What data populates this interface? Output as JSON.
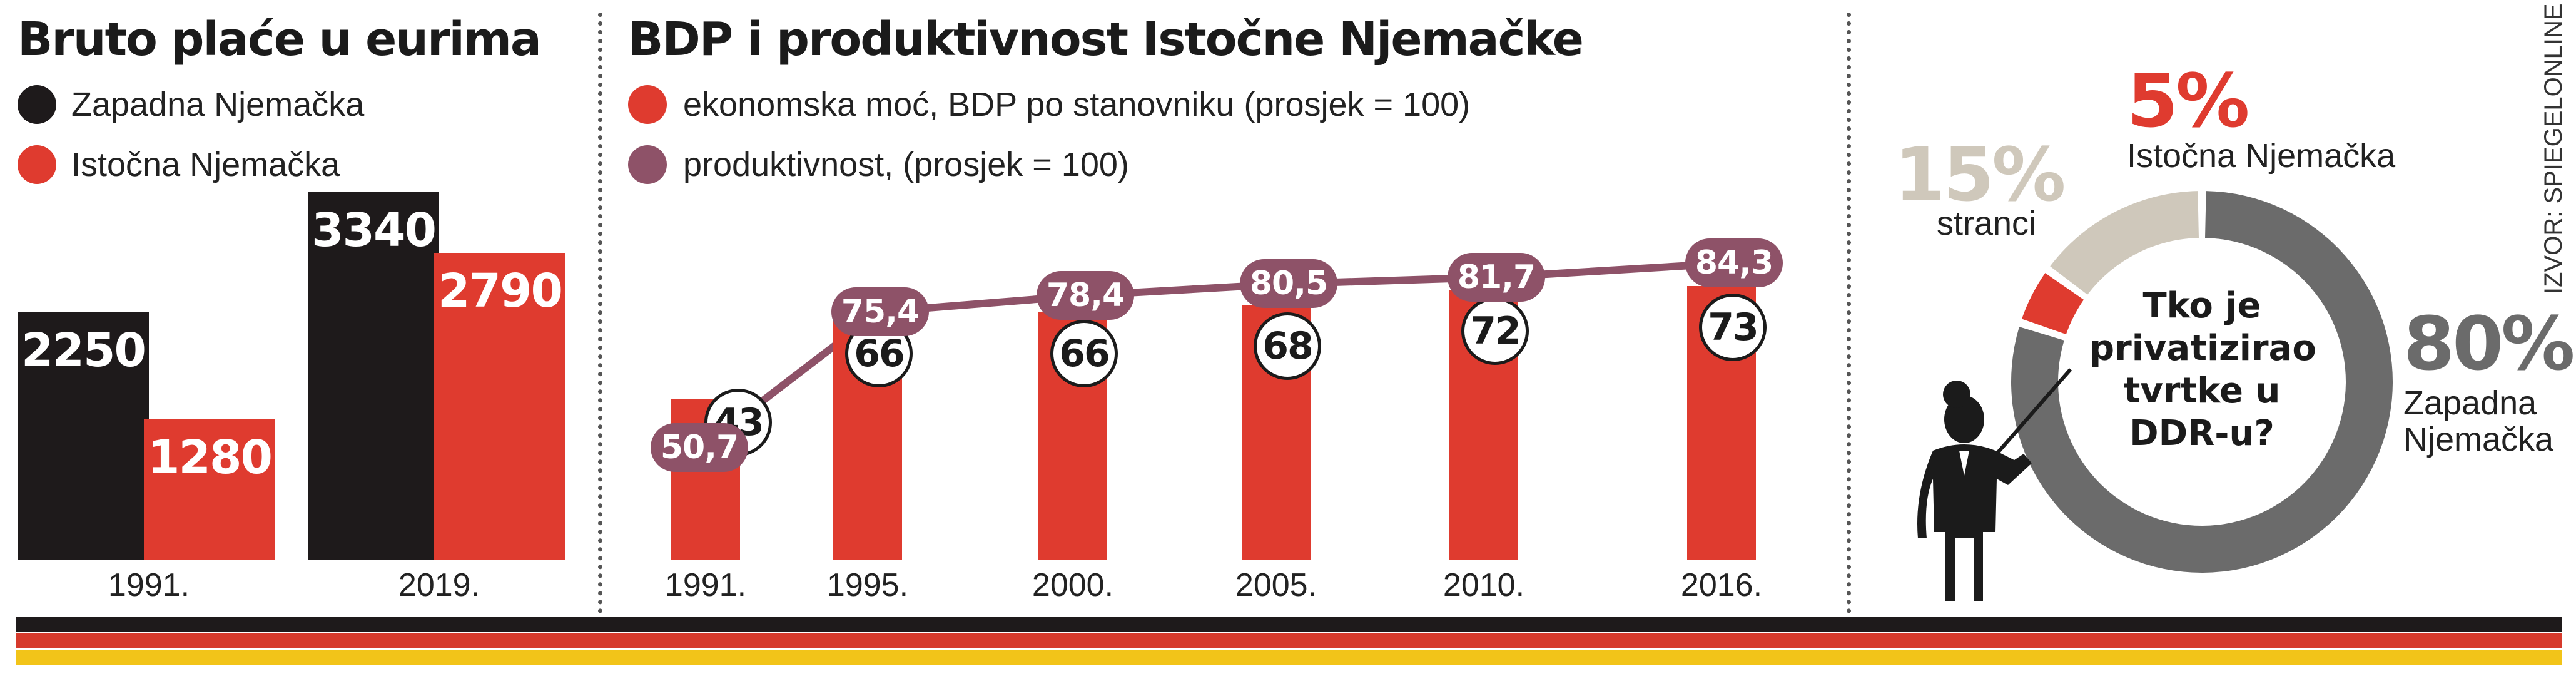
{
  "colors": {
    "black_bar": "#1e1a1b",
    "red": "#df3b2f",
    "purple": "#8e5268",
    "donut_gray": "#6b6b6b",
    "donut_beige": "#cfc8bb",
    "stripe_black": "#1e1a1b",
    "stripe_red": "#d63a2c",
    "stripe_gold": "#f2c419"
  },
  "panel1": {
    "title": "Bruto plaće u eurima",
    "legend": [
      {
        "label": "Zapadna Njemačka",
        "color": "#1e1a1b"
      },
      {
        "label": "Istočna Njemačka",
        "color": "#df3b2f"
      }
    ]
  },
  "panel2": {
    "title": "BDP i produktivnost Istočne Njemačke",
    "legend": [
      {
        "label": "ekonomska moć, BDP po stanovniku (prosjek = 100)",
        "color": "#df3b2f"
      },
      {
        "label": "produktivnost, (prosjek = 100)",
        "color": "#8e5268"
      }
    ]
  },
  "panel3": {
    "question": "Tko je privatizirao tvrtke u DDR-u?",
    "source": "IZVOR: SPIEGELONLINE",
    "icon": "teacher-pointer-icon"
  },
  "chart_data": [
    {
      "type": "bar",
      "title": "Bruto plaće u eurima",
      "categories": [
        "1991.",
        "2019."
      ],
      "series": [
        {
          "name": "Zapadna Njemačka",
          "values": [
            2250,
            3340
          ],
          "labels": [
            "2250",
            "3340"
          ]
        },
        {
          "name": "Istočna Njemačka",
          "values": [
            1280,
            2790
          ],
          "labels": [
            "1280",
            "2790"
          ]
        }
      ],
      "ylim": [
        0,
        3500
      ]
    },
    {
      "type": "bar",
      "title": "BDP i produktivnost Istočne Njemačke",
      "categories": [
        "1991.",
        "1995.",
        "2000.",
        "2005.",
        "2010.",
        "2016."
      ],
      "series": [
        {
          "name": "ekonomska moć, BDP po stanovniku (prosjek = 100)",
          "values": [
            43,
            66,
            66,
            68,
            72,
            73
          ],
          "labels": [
            "43",
            "66",
            "66",
            "68",
            "72",
            "73"
          ]
        },
        {
          "name": "produktivnost, (prosjek = 100)",
          "type": "line",
          "values": [
            50.7,
            75.4,
            78.4,
            80.5,
            81.7,
            84.3
          ],
          "labels": [
            "50,7",
            "75,4",
            "78,4",
            "80,5",
            "81,7",
            "84,3"
          ]
        }
      ],
      "ylim": [
        0,
        100
      ]
    },
    {
      "type": "pie",
      "title": "Tko je privatizirao tvrtke u DDR-u?",
      "slices": [
        {
          "name": "Zapadna Njemačka",
          "value": 80,
          "label": "80%",
          "color": "#6b6b6b"
        },
        {
          "name": "Istočna Njemačka",
          "value": 5,
          "label": "5%",
          "color": "#df3b2f"
        },
        {
          "name": "stranci",
          "value": 15,
          "label": "15%",
          "color": "#cfc8bb"
        }
      ]
    }
  ]
}
